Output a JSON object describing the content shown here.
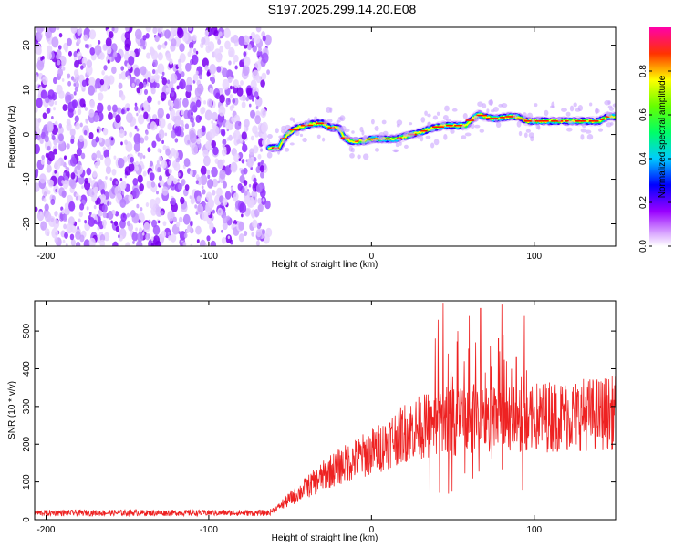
{
  "title": "S197.2025.299.14.20.E08",
  "chart_data": [
    {
      "type": "heatmap",
      "name": "spectrogram",
      "xlabel": "Height of straight line (km)",
      "ylabel": "Frequency (Hz)",
      "xlim": [
        -207,
        150
      ],
      "ylim": [
        -25,
        24
      ],
      "xticks": [
        -200,
        -100,
        0,
        100
      ],
      "yticks": [
        -20,
        -10,
        0,
        10,
        20
      ],
      "noise_region": [
        -207,
        -63
      ],
      "ridge": [
        [
          -63,
          -3.0
        ],
        [
          -57,
          -3.0
        ],
        [
          -52,
          0.0
        ],
        [
          -46,
          1.5
        ],
        [
          -40,
          2.0
        ],
        [
          -35,
          2.5
        ],
        [
          -30,
          2.5
        ],
        [
          -25,
          1.5
        ],
        [
          -20,
          1.5
        ],
        [
          -17,
          -0.5
        ],
        [
          -13,
          -1.5
        ],
        [
          -5,
          -1.5
        ],
        [
          0,
          -1.0
        ],
        [
          5,
          -1.0
        ],
        [
          10,
          -1.0
        ],
        [
          15,
          -1.0
        ],
        [
          20,
          -0.5
        ],
        [
          25,
          0.0
        ],
        [
          30,
          0.5
        ],
        [
          38,
          1.5
        ],
        [
          45,
          2.0
        ],
        [
          52,
          2.0
        ],
        [
          58,
          2.0
        ],
        [
          62,
          3.5
        ],
        [
          66,
          4.5
        ],
        [
          70,
          4.0
        ],
        [
          75,
          3.5
        ],
        [
          80,
          3.8
        ],
        [
          85,
          4.0
        ],
        [
          90,
          4.0
        ],
        [
          95,
          3.0
        ],
        [
          100,
          3.0
        ],
        [
          110,
          3.0
        ],
        [
          120,
          3.0
        ],
        [
          130,
          3.0
        ],
        [
          140,
          3.0
        ],
        [
          145,
          4.0
        ],
        [
          150,
          4.0
        ]
      ]
    },
    {
      "type": "colorbar",
      "name": "amplitude-colorbar",
      "label": "Normalized spectral amplitude",
      "ticks": [
        0.0,
        0.2,
        0.4,
        0.6,
        0.8
      ],
      "ylim": [
        0,
        1
      ],
      "colors": [
        "#ffffff",
        "#9900ff",
        "#0000ff",
        "#00ffff",
        "#00ff00",
        "#ffff00",
        "#ff0000",
        "#ff00aa"
      ]
    },
    {
      "type": "line",
      "name": "snr-trace",
      "xlabel": "Height of straight line (km)",
      "ylabel": "SNR (10 * v/v)",
      "xlim": [
        -207,
        150
      ],
      "ylim": [
        0,
        580
      ],
      "xticks": [
        -200,
        -100,
        0,
        100
      ],
      "yticks": [
        0,
        100,
        200,
        300,
        400,
        500
      ],
      "color": "#ee2222",
      "envelope": [
        [
          -207,
          18
        ],
        [
          -100,
          18
        ],
        [
          -63,
          18
        ],
        [
          -55,
          40
        ],
        [
          -45,
          70
        ],
        [
          -35,
          100
        ],
        [
          -25,
          130
        ],
        [
          -15,
          150
        ],
        [
          -5,
          170
        ],
        [
          5,
          190
        ],
        [
          15,
          220
        ],
        [
          25,
          240
        ],
        [
          35,
          250
        ],
        [
          45,
          260
        ],
        [
          55,
          260
        ],
        [
          65,
          270
        ],
        [
          75,
          260
        ],
        [
          85,
          270
        ],
        [
          95,
          240
        ],
        [
          100,
          270
        ],
        [
          110,
          275
        ],
        [
          120,
          275
        ],
        [
          130,
          280
        ],
        [
          140,
          280
        ],
        [
          150,
          285
        ]
      ],
      "spikes": [
        [
          41,
          530
        ],
        [
          44,
          575
        ],
        [
          47,
          440
        ],
        [
          50,
          380
        ],
        [
          53,
          500
        ],
        [
          57,
          420
        ],
        [
          60,
          540
        ],
        [
          64,
          470
        ],
        [
          67,
          560
        ],
        [
          70,
          390
        ],
        [
          73,
          460
        ],
        [
          75,
          350
        ],
        [
          78,
          480
        ],
        [
          80,
          570
        ],
        [
          83,
          420
        ],
        [
          86,
          400
        ],
        [
          89,
          430
        ],
        [
          92,
          380
        ],
        [
          94,
          540
        ],
        [
          97,
          280
        ]
      ]
    }
  ]
}
